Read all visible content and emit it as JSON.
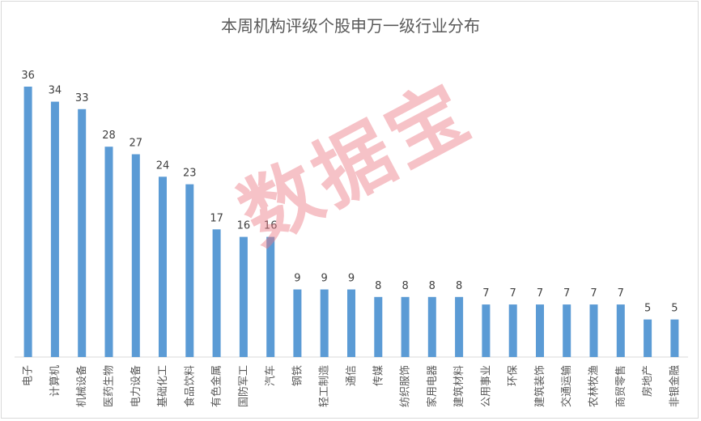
{
  "chart_data": {
    "type": "bar",
    "title": "本周机构评级个股申万一级行业分布",
    "categories": [
      "电子",
      "计算机",
      "机械设备",
      "医药生物",
      "电力设备",
      "基础化工",
      "食品饮料",
      "有色金属",
      "国防军工",
      "汽车",
      "钢铁",
      "轻工制造",
      "通信",
      "传媒",
      "纺织服饰",
      "家用电器",
      "建筑材料",
      "公用事业",
      "环保",
      "建筑装饰",
      "交通运输",
      "农林牧渔",
      "商贸零售",
      "房地产",
      "非银金融"
    ],
    "values": [
      36,
      34,
      33,
      28,
      27,
      24,
      23,
      17,
      16,
      16,
      9,
      9,
      9,
      8,
      8,
      8,
      8,
      7,
      7,
      7,
      7,
      7,
      7,
      5,
      5
    ],
    "ylim": [
      0,
      36
    ],
    "grid": false,
    "bar_color": "#5b9bd5",
    "data_labels": true
  },
  "watermark": "数据宝"
}
